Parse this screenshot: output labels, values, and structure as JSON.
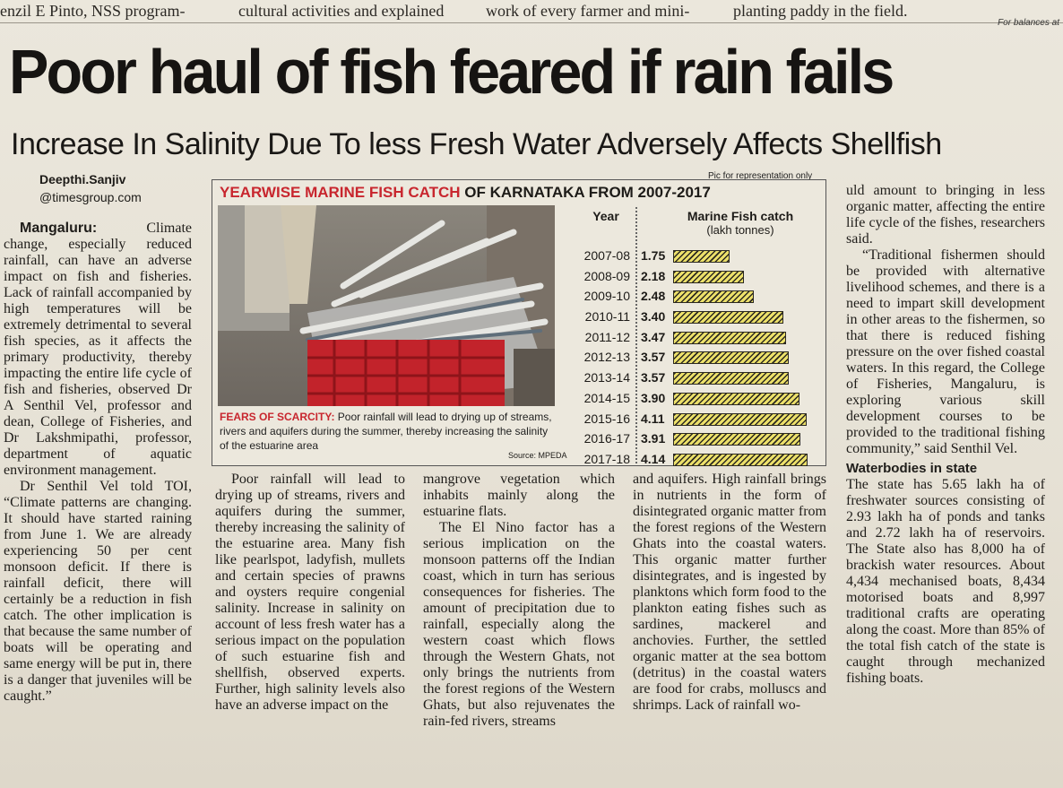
{
  "top_strip": {
    "frag1": "enzil E Pinto, NSS program-",
    "frag2": "cultural activities and explained",
    "frag3": "work of every farmer and mini-",
    "frag4": "planting paddy in the field.",
    "side_note": "For balances at"
  },
  "headline": "Poor haul of fish feared if rain fails",
  "subheadline": "Increase In Salinity Due To less Fresh Water Adversely Affects Shellfish",
  "byline": {
    "name": "Deepthi.Sanjiv",
    "org": "@timesgroup.com"
  },
  "graphic": {
    "pic_credit": "Pic for representation only",
    "title_red": "YEARWISE MARINE FISH CATCH",
    "title_black": "OF KARNATAKA FROM 2007-2017",
    "caption_label": "FEARS OF SCARCITY:",
    "caption_text": "Poor rainfall will lead to drying up of streams, rivers and aquifers during the summer, thereby increasing the salinity of the estuarine area",
    "source": "Source: MPEDA"
  },
  "chart_data": {
    "type": "bar",
    "title": "YEARWISE MARINE FISH CATCH OF KARNATAKA FROM 2007-2017",
    "xlabel": "Year",
    "ylabel": "Marine Fish catch",
    "ylabel_unit": "(lakh tonnes)",
    "orientation": "horizontal",
    "categories": [
      "2007-08",
      "2008-09",
      "2009-10",
      "2010-11",
      "2011-12",
      "2012-13",
      "2013-14",
      "2014-15",
      "2015-16",
      "2016-17",
      "2017-18"
    ],
    "values": [
      1.75,
      2.18,
      2.48,
      3.4,
      3.47,
      3.57,
      3.57,
      3.9,
      4.11,
      3.91,
      4.14
    ],
    "value_labels": [
      "1.75",
      "2.18",
      "2.48",
      "3.40",
      "3.47",
      "3.57",
      "3.57",
      "3.90",
      "4.11",
      "3.91",
      "4.14"
    ],
    "bar_color": "#ece06a"
  },
  "article": {
    "col1": {
      "dateline": "Mangaluru:",
      "p1": "Climate change, especially reduced rainfall, can have an adverse impact on fish and fisheries. Lack of rainfall accompanied by high temperatures will be extremely detrimental to several fish species, as it affects the primary productivity, thereby impacting the entire life cycle of fish and fisheries, observed Dr A Senthil Vel, professor and dean, College of Fisheries, and Dr Lakshmipathi, professor, department of aquatic environment management.",
      "p2": "Dr Senthil Vel told TOI, “Climate patterns are changing. It should have started raining from June 1. We are already experiencing 50 per cent monsoon deficit. If there is rainfall deficit, there will certainly be a reduction in fish catch. The other implication is that because the same number of boats will be operating and same energy will be put in, there is a danger that juveniles will be caught.”"
    },
    "col2": {
      "p1": "Poor rainfall will lead to drying up of streams, rivers and aquifers during the summer, thereby increasing the salinity of the estuarine area. Many fish like pearlspot, ladyfish, mullets and certain species of prawns and oysters require congenial salinity. Increase in salinity on account of less fresh water has a serious impact on the population of such estuarine fish and shellfish, observed experts. Further, high salinity levels also have an adverse impact on the"
    },
    "col3": {
      "p1": "mangrove vegetation which inhabits mainly along the estuarine flats.",
      "p2": "The El Nino factor has a serious implication on the monsoon patterns off the Indian coast, which in turn has serious consequences for fisheries. The amount of precipitation due to rainfall, especially along the western coast which flows through the Western Ghats, not only brings the nutrients from the forest regions of the Western Ghats, but also rejuvenates the rain-fed rivers, streams"
    },
    "col4": {
      "p1": "and aquifers. High rainfall brings in nutrients in the form of disintegrated organic matter from the forest regions of the Western Ghats into the coastal waters. This organic matter further disintegrates, and is ingested by planktons which form food to the plankton eating fishes such as sardines, mackerel and anchovies. Further, the settled organic matter at the sea bottom (detritus) in the coastal waters are food for crabs, molluscs and shrimps. Lack of rainfall wo-"
    },
    "col5": {
      "p1": "uld amount to bringing in less organic matter, affecting the entire life cycle of the fishes, researchers said.",
      "p2": "“Traditional fishermen should be provided with alternative livelihood schemes, and there is a need to impart skill development in other areas to the fishermen, so that there is reduced fishing pressure on the over fished coastal waters. In this regard, the College of Fisheries, Mangaluru, is exploring various skill development courses to be provided to the traditional fishing community,” said Senthil Vel.",
      "subhead": "Waterbodies in state",
      "p3": "The state has 5.65 lakh ha of freshwater sources consisting of 2.93 lakh ha of ponds and tanks and 2.72 lakh ha of reservoirs. The State also has 8,000 ha of brackish water resources. About 4,434 mechanised boats, 8,434 motorised boats and 8,997 traditional crafts are operating along the coast. More than 85% of the total fish catch of the state is caught through mechanized fishing boats."
    }
  }
}
